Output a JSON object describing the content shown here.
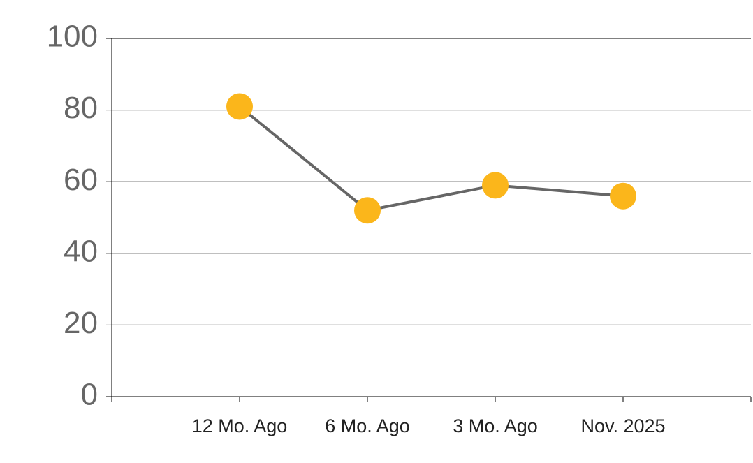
{
  "chart_data": {
    "type": "line",
    "categories": [
      "12 Mo. Ago",
      "6 Mo. Ago",
      "3 Mo. Ago",
      "Nov. 2025"
    ],
    "values": [
      81,
      52,
      59,
      56
    ],
    "line_color": "#666666",
    "marker_color": "#fbb61b",
    "ylim": [
      0,
      100
    ],
    "yticks": [
      0,
      20,
      40,
      60,
      80,
      100
    ],
    "grid": true
  }
}
